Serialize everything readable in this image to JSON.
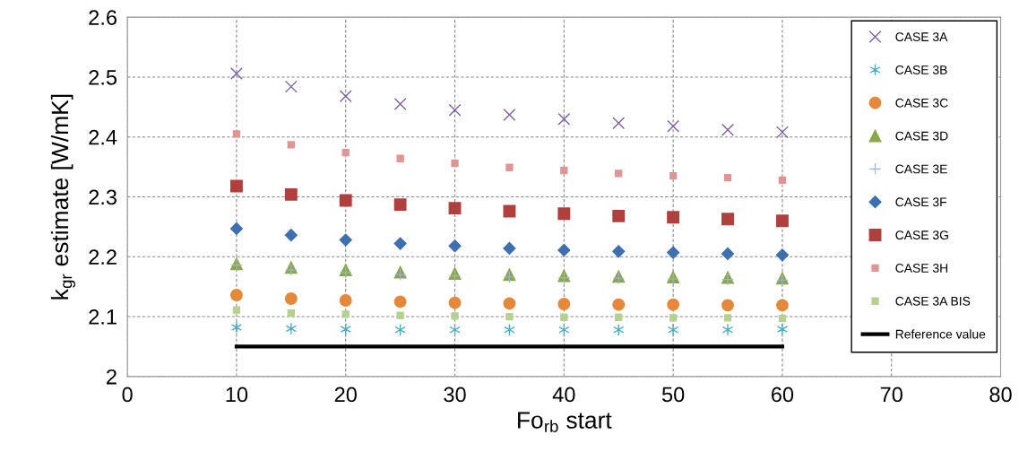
{
  "chart_data": {
    "type": "scatter",
    "xlabel": "Fo$_{rb}$ start",
    "ylabel": "k$_{gr}$ estimate [W/mK]",
    "x": [
      10,
      15,
      20,
      25,
      30,
      35,
      40,
      45,
      50,
      55,
      60
    ],
    "series": [
      {
        "name": "CASE 3A",
        "color": "#7b5ea7",
        "marker": "cross",
        "values": [
          2.506,
          2.484,
          2.468,
          2.455,
          2.445,
          2.437,
          2.43,
          2.423,
          2.418,
          2.412,
          2.408
        ]
      },
      {
        "name": "CASE 3B",
        "color": "#4bacc6",
        "marker": "cross",
        "values": [
          2.082,
          2.08,
          2.079,
          2.078,
          2.078,
          2.078,
          2.078,
          2.078,
          2.078,
          2.078,
          2.079
        ]
      },
      {
        "name": "CASE 3C",
        "color": "#e6883a",
        "marker": "circle",
        "values": [
          2.136,
          2.13,
          2.127,
          2.125,
          2.123,
          2.122,
          2.121,
          2.12,
          2.12,
          2.119,
          2.119
        ]
      },
      {
        "name": "CASE 3D",
        "color": "#8aa84a",
        "marker": "triangle",
        "values": [
          2.188,
          2.182,
          2.178,
          2.174,
          2.172,
          2.17,
          2.168,
          2.167,
          2.166,
          2.165,
          2.164
        ]
      },
      {
        "name": "CASE 3E",
        "color": "#9db3dc",
        "marker": "plus",
        "values": [
          2.186,
          2.178,
          2.174,
          2.17,
          2.168,
          2.166,
          2.165,
          2.164,
          2.163,
          2.162,
          2.161
        ]
      },
      {
        "name": "CASE 3F",
        "color": "#3e6faf",
        "marker": "diamond",
        "values": [
          2.247,
          2.236,
          2.228,
          2.222,
          2.218,
          2.214,
          2.211,
          2.209,
          2.207,
          2.205,
          2.203
        ]
      },
      {
        "name": "CASE 3G",
        "color": "#b0403d",
        "marker": "square",
        "values": [
          2.318,
          2.304,
          2.294,
          2.287,
          2.281,
          2.276,
          2.272,
          2.268,
          2.266,
          2.263,
          2.26
        ]
      },
      {
        "name": "CASE 3H",
        "color": "#e09594",
        "marker": "square",
        "values": [
          2.405,
          2.387,
          2.374,
          2.364,
          2.356,
          2.349,
          2.344,
          2.339,
          2.335,
          2.332,
          2.328
        ]
      },
      {
        "name": "CASE 3A BIS",
        "color": "#b6d18f",
        "marker": "square",
        "values": [
          2.111,
          2.106,
          2.104,
          2.102,
          2.101,
          2.1,
          2.099,
          2.099,
          2.098,
          2.098,
          2.097
        ]
      },
      {
        "name": "Reference value",
        "type": "line",
        "color": "#000000",
        "marker": "none",
        "line_style": "solid",
        "x": [
          10,
          60
        ],
        "values": [
          2.05,
          2.05
        ]
      }
    ],
    "xlim": [
      0,
      80
    ],
    "xticks": [
      0,
      10,
      20,
      30,
      40,
      50,
      60,
      70,
      80
    ],
    "ylim": [
      2,
      2.6
    ],
    "yticks": [
      {
        "value": 2,
        "label": "2"
      },
      {
        "value": 2.1,
        "label": "2.1"
      },
      {
        "value": 2.2,
        "label": "2.2"
      },
      {
        "value": 2.3,
        "label": "2.3"
      },
      {
        "value": 2.4,
        "label": "2.4"
      },
      {
        "value": 2.5,
        "label": "2.5"
      },
      {
        "value": 2.6,
        "label": "2.6"
      }
    ],
    "grid": true,
    "legend": "top right"
  }
}
